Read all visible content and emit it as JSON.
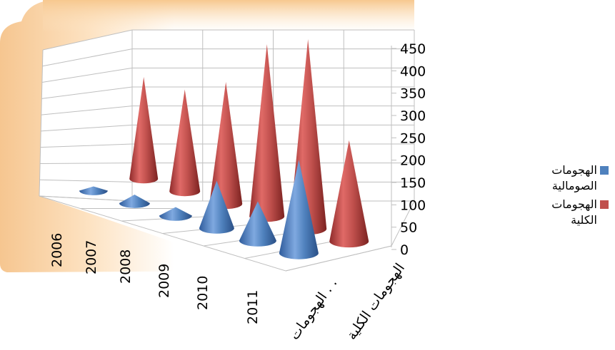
{
  "chart_data": {
    "type": "bar",
    "shape": "cone",
    "three_d": true,
    "categories": [
      "2006",
      "2007",
      "2008",
      "2009",
      "2010",
      "2011"
    ],
    "series_axis_labels": [
      "الهجومات . .",
      "الهجومات الكلية"
    ],
    "series": [
      {
        "name": "الهجومات الصومالية",
        "color": "#4f81bd",
        "values": [
          10,
          20,
          20,
          111,
          92,
          219
        ]
      },
      {
        "name": "الهجومات الكلية",
        "color": "#c0504d",
        "values": [
          239,
          239,
          286,
          404,
          445,
          237
        ]
      }
    ],
    "yticks": [
      "0",
      "50",
      "100",
      "150",
      "200",
      "250",
      "300",
      "350",
      "400",
      "450"
    ],
    "ylim": [
      0,
      450
    ],
    "grid": true,
    "legend_position": "right"
  }
}
